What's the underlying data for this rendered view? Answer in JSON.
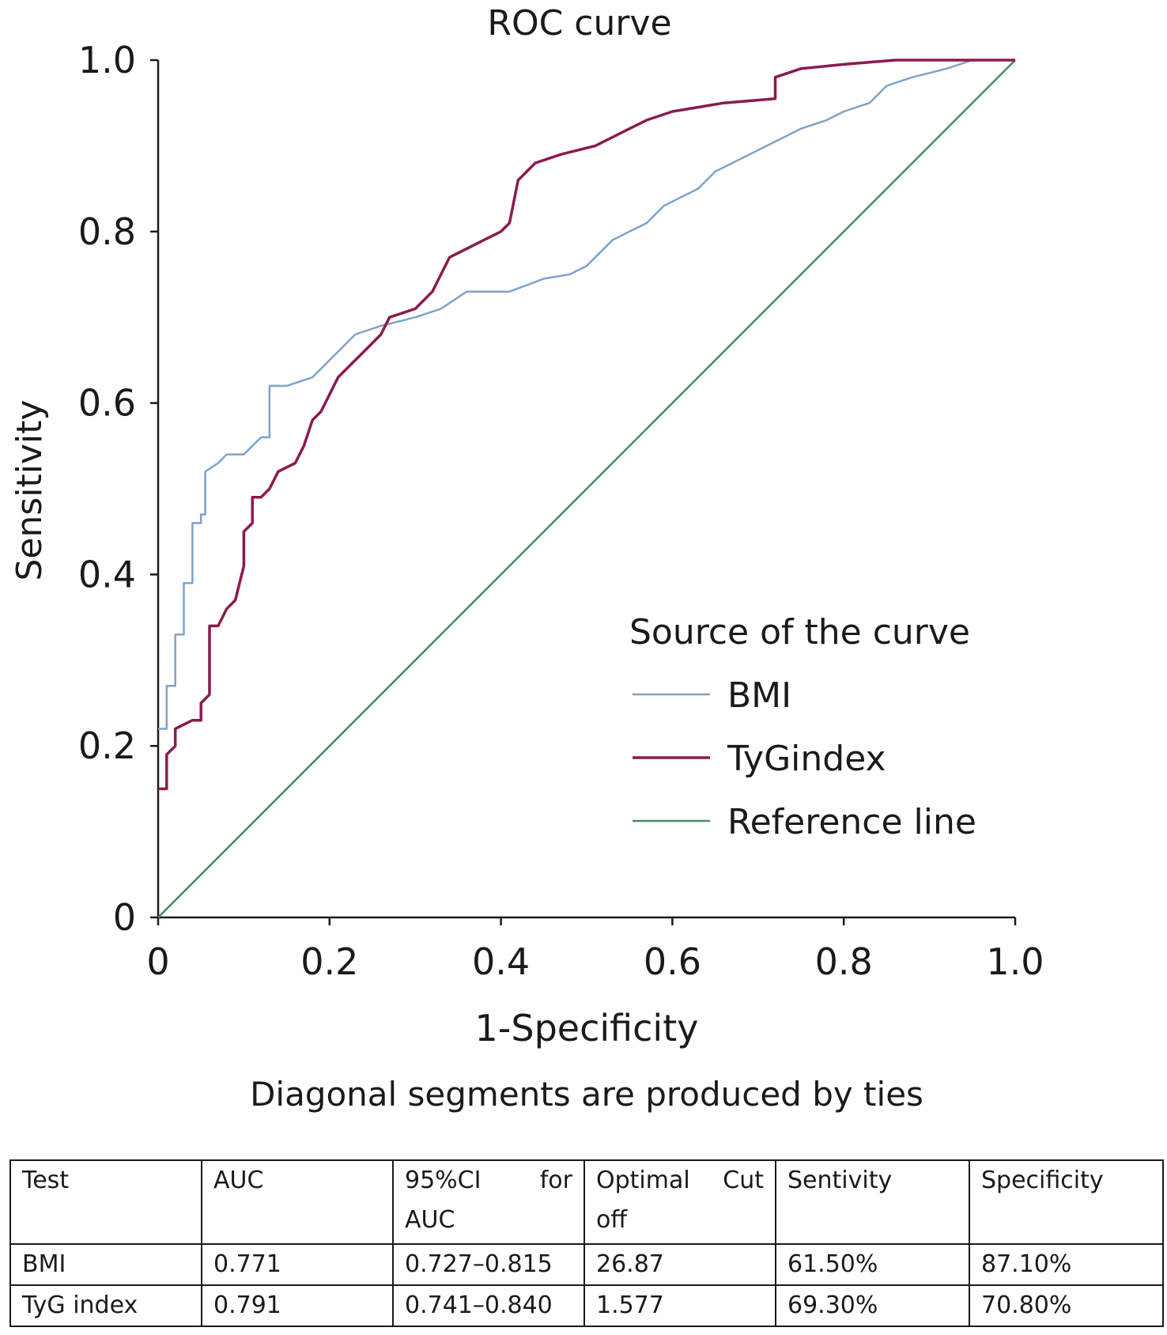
{
  "chart_data": {
    "type": "line",
    "title": "ROC curve",
    "xlabel": "1-Specificity",
    "ylabel": "Sensitivity",
    "footnote": "Diagonal segments are produced by ties",
    "xlim": [
      0,
      1
    ],
    "ylim": [
      0,
      1
    ],
    "x_ticks": [
      "0",
      "0.2",
      "0.4",
      "0.6",
      "0.8",
      "1.0"
    ],
    "y_ticks": [
      "0",
      "0.2",
      "0.4",
      "0.6",
      "0.8",
      "1.0"
    ],
    "grid": false,
    "legend": {
      "title": "Source of the curve",
      "position": "bottom-right"
    },
    "series": [
      {
        "name": "BMI",
        "color": "#7fa3c8",
        "points": [
          [
            0.0,
            0.22
          ],
          [
            0.01,
            0.22
          ],
          [
            0.01,
            0.27
          ],
          [
            0.02,
            0.27
          ],
          [
            0.02,
            0.33
          ],
          [
            0.03,
            0.33
          ],
          [
            0.03,
            0.39
          ],
          [
            0.04,
            0.39
          ],
          [
            0.04,
            0.46
          ],
          [
            0.05,
            0.46
          ],
          [
            0.05,
            0.47
          ],
          [
            0.055,
            0.47
          ],
          [
            0.055,
            0.52
          ],
          [
            0.07,
            0.53
          ],
          [
            0.08,
            0.54
          ],
          [
            0.1,
            0.54
          ],
          [
            0.11,
            0.55
          ],
          [
            0.12,
            0.56
          ],
          [
            0.13,
            0.56
          ],
          [
            0.13,
            0.62
          ],
          [
            0.15,
            0.62
          ],
          [
            0.18,
            0.63
          ],
          [
            0.19,
            0.64
          ],
          [
            0.2,
            0.65
          ],
          [
            0.21,
            0.66
          ],
          [
            0.23,
            0.68
          ],
          [
            0.26,
            0.69
          ],
          [
            0.3,
            0.7
          ],
          [
            0.33,
            0.71
          ],
          [
            0.36,
            0.73
          ],
          [
            0.41,
            0.73
          ],
          [
            0.45,
            0.745
          ],
          [
            0.48,
            0.75
          ],
          [
            0.5,
            0.76
          ],
          [
            0.52,
            0.78
          ],
          [
            0.53,
            0.79
          ],
          [
            0.55,
            0.8
          ],
          [
            0.57,
            0.81
          ],
          [
            0.59,
            0.83
          ],
          [
            0.61,
            0.84
          ],
          [
            0.63,
            0.85
          ],
          [
            0.65,
            0.87
          ],
          [
            0.67,
            0.88
          ],
          [
            0.69,
            0.89
          ],
          [
            0.71,
            0.9
          ],
          [
            0.73,
            0.91
          ],
          [
            0.75,
            0.92
          ],
          [
            0.78,
            0.93
          ],
          [
            0.8,
            0.94
          ],
          [
            0.83,
            0.95
          ],
          [
            0.85,
            0.97
          ],
          [
            0.88,
            0.98
          ],
          [
            0.92,
            0.99
          ],
          [
            0.95,
            1.0
          ],
          [
            1.0,
            1.0
          ]
        ]
      },
      {
        "name": "TyGindex",
        "color": "#8b1a4f",
        "points": [
          [
            0.0,
            0.15
          ],
          [
            0.01,
            0.15
          ],
          [
            0.01,
            0.19
          ],
          [
            0.02,
            0.2
          ],
          [
            0.02,
            0.22
          ],
          [
            0.04,
            0.23
          ],
          [
            0.05,
            0.23
          ],
          [
            0.05,
            0.25
          ],
          [
            0.06,
            0.26
          ],
          [
            0.06,
            0.34
          ],
          [
            0.07,
            0.34
          ],
          [
            0.08,
            0.36
          ],
          [
            0.09,
            0.37
          ],
          [
            0.1,
            0.41
          ],
          [
            0.1,
            0.45
          ],
          [
            0.11,
            0.46
          ],
          [
            0.11,
            0.49
          ],
          [
            0.12,
            0.49
          ],
          [
            0.13,
            0.5
          ],
          [
            0.14,
            0.52
          ],
          [
            0.16,
            0.53
          ],
          [
            0.17,
            0.55
          ],
          [
            0.18,
            0.58
          ],
          [
            0.19,
            0.59
          ],
          [
            0.2,
            0.61
          ],
          [
            0.21,
            0.63
          ],
          [
            0.22,
            0.64
          ],
          [
            0.23,
            0.65
          ],
          [
            0.24,
            0.66
          ],
          [
            0.26,
            0.68
          ],
          [
            0.27,
            0.7
          ],
          [
            0.3,
            0.71
          ],
          [
            0.32,
            0.73
          ],
          [
            0.33,
            0.75
          ],
          [
            0.34,
            0.77
          ],
          [
            0.36,
            0.78
          ],
          [
            0.38,
            0.79
          ],
          [
            0.4,
            0.8
          ],
          [
            0.41,
            0.81
          ],
          [
            0.42,
            0.86
          ],
          [
            0.44,
            0.88
          ],
          [
            0.47,
            0.89
          ],
          [
            0.51,
            0.9
          ],
          [
            0.53,
            0.91
          ],
          [
            0.55,
            0.92
          ],
          [
            0.57,
            0.93
          ],
          [
            0.6,
            0.94
          ],
          [
            0.63,
            0.945
          ],
          [
            0.66,
            0.95
          ],
          [
            0.72,
            0.955
          ],
          [
            0.72,
            0.98
          ],
          [
            0.75,
            0.99
          ],
          [
            0.8,
            0.995
          ],
          [
            0.86,
            1.0
          ],
          [
            1.0,
            1.0
          ]
        ]
      },
      {
        "name": "Reference line",
        "color": "#4a8a5a",
        "points": [
          [
            0.0,
            0.0
          ],
          [
            1.0,
            1.0
          ]
        ]
      }
    ],
    "table": {
      "headers": [
        [
          "Test"
        ],
        [
          "AUC"
        ],
        [
          "95%CI",
          "for",
          "AUC"
        ],
        [
          "Optimal",
          "Cut",
          "off"
        ],
        [
          "Sentivity"
        ],
        [
          "Specificity"
        ]
      ],
      "rows": [
        [
          "BMI",
          "0.771",
          "0.727–0.815",
          "26.87",
          "61.50%",
          "87.10%"
        ],
        [
          "TyG index",
          "0.791",
          "0.741–0.840",
          "1.577",
          "69.30%",
          "70.80%"
        ]
      ]
    }
  }
}
